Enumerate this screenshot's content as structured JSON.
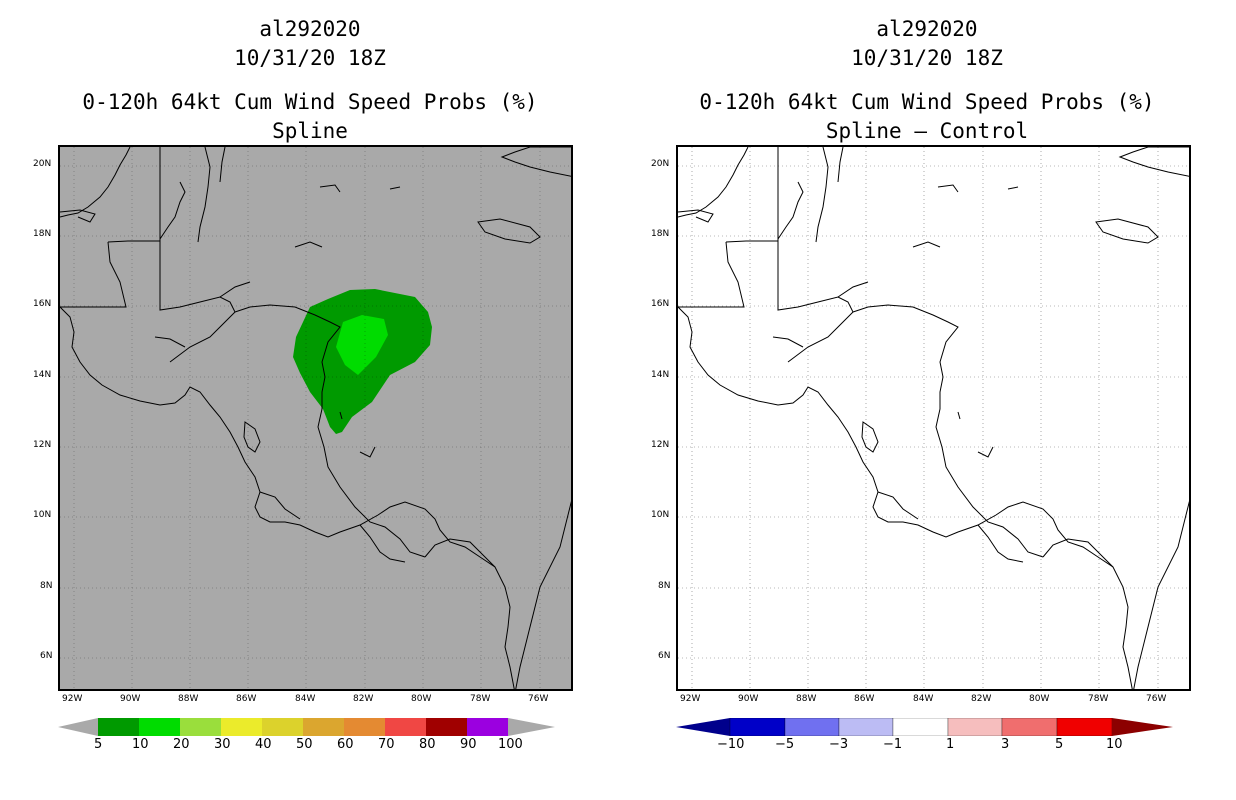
{
  "panels": [
    {
      "storm_id": "al292020",
      "date": "10/31/20 18Z",
      "product": "0-120h 64kt Cum Wind Speed Probs (%)",
      "subtitle": "Spline"
    },
    {
      "storm_id": "al292020",
      "date": "10/31/20 18Z",
      "product": "0-120h 64kt Cum Wind Speed Probs (%)",
      "subtitle": "Spline – Control"
    }
  ],
  "map": {
    "lat_labels": [
      "20N",
      "18N",
      "16N",
      "14N",
      "12N",
      "10N",
      "8N",
      "6N"
    ],
    "lon_labels": [
      "92W",
      "90W",
      "88W",
      "86W",
      "84W",
      "82W",
      "80W",
      "78W",
      "76W"
    ],
    "left_background": "#a9a9a9",
    "right_background": "#ffffff",
    "grid_lines": "dotted"
  },
  "colorbar_left": {
    "labels": [
      "5",
      "10",
      "20",
      "30",
      "40",
      "50",
      "60",
      "70",
      "80",
      "90",
      "100"
    ],
    "colors": [
      "#009a00",
      "#00dc00",
      "#9ade3c",
      "#ebeb2b",
      "#dcd22c",
      "#dba62f",
      "#e48a32",
      "#f04744",
      "#a00000",
      "#9b00e0"
    ]
  },
  "colorbar_right": {
    "labels": [
      "−10",
      "−5",
      "−3",
      "−1",
      "1",
      "3",
      "5",
      "10"
    ],
    "colors": [
      "#0000c8",
      "#7070f0",
      "#bcbcf4",
      "#ffffff",
      "#f6bebe",
      "#f06e6e",
      "#f00000"
    ]
  },
  "probability_areas": [
    {
      "level": "5-10%",
      "color": "#009a00"
    },
    {
      "level": "10-20%",
      "color": "#00dc00"
    }
  ]
}
